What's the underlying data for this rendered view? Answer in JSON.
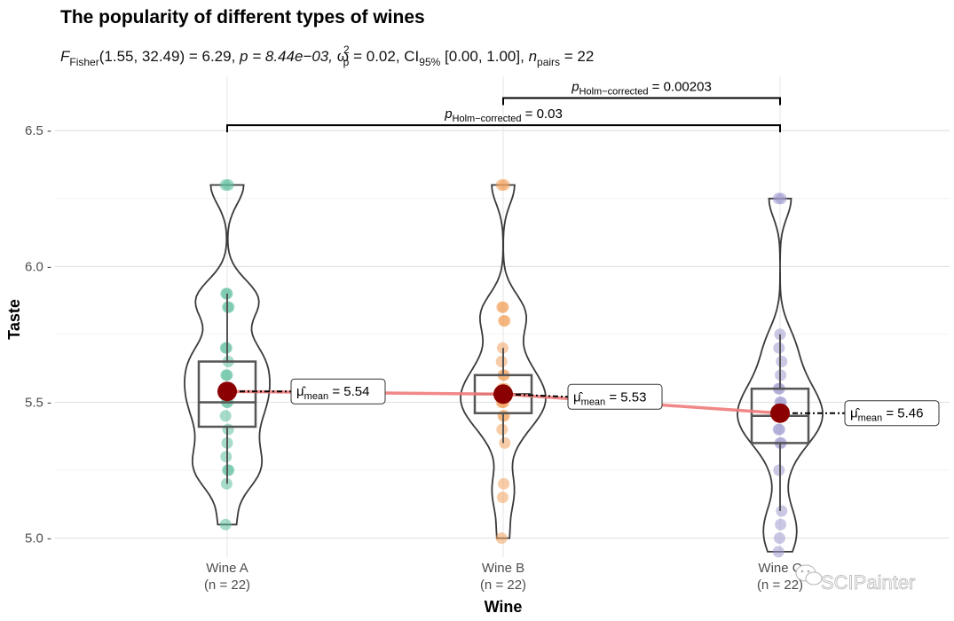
{
  "chart_data": {
    "type": "violin-box",
    "title": "The popularity of different types of wines",
    "subtitle": {
      "stat_prefix": "F",
      "stat_sub": "Fisher",
      "stat_args": "(1.55, 32.49) = 6.29, ",
      "p_text": "p = 8.44e−03, ",
      "omega_symbol": "ω",
      "omega_sub": "p",
      "omega_sup": "2",
      "omega_value": " = 0.02, CI",
      "ci_sub": "95%",
      "ci_text": " [0.00, 1.00], ",
      "n_prefix": "n",
      "n_sub": "pairs",
      "n_value": " = 22"
    },
    "xlabel": "Wine",
    "ylabel": "Taste",
    "ylim": [
      4.93,
      6.7
    ],
    "yticks": [
      5.0,
      5.5,
      6.0,
      6.5
    ],
    "ytick_labels": [
      "5.0 -",
      "5.5 -",
      "6.0 -",
      "6.5 -"
    ],
    "grid": true,
    "categories": [
      "Wine A",
      "Wine B",
      "Wine C"
    ],
    "n_labels": [
      "(n = 22)",
      "(n = 22)",
      "(n = 22)"
    ],
    "colors": {
      "Wine A": "#5fbf9e",
      "Wine B": "#f3a35e",
      "Wine C": "#9e9ad0",
      "mean_point": "#8b0000",
      "mean_line": "#ef7b7b"
    },
    "groups": [
      {
        "name": "Wine A",
        "points": [
          5.05,
          5.2,
          5.25,
          5.25,
          5.3,
          5.35,
          5.4,
          5.45,
          5.5,
          5.5,
          5.55,
          5.6,
          5.6,
          5.65,
          5.7,
          5.7,
          5.85,
          5.85,
          5.9,
          5.9,
          6.3,
          6.3
        ],
        "box": {
          "q1": 5.41,
          "median": 5.5,
          "q3": 5.65,
          "whisker_low": 5.2,
          "whisker_high": 5.9
        },
        "mean": 5.54,
        "mean_label_prefix": "μ̂",
        "mean_label_sub": "mean",
        "mean_label_value": " = 5.54"
      },
      {
        "name": "Wine B",
        "points": [
          5.0,
          5.15,
          5.2,
          5.35,
          5.4,
          5.45,
          5.45,
          5.5,
          5.5,
          5.5,
          5.55,
          5.55,
          5.6,
          5.6,
          5.65,
          5.7,
          5.8,
          5.8,
          5.85,
          5.85,
          6.3,
          6.3
        ],
        "box": {
          "q1": 5.46,
          "median": 5.53,
          "q3": 5.6,
          "whisker_low": 5.35,
          "whisker_high": 5.7
        },
        "mean": 5.53,
        "mean_label_prefix": "μ̂",
        "mean_label_sub": "mean",
        "mean_label_value": " = 5.53"
      },
      {
        "name": "Wine C",
        "points": [
          4.95,
          5.0,
          5.05,
          5.1,
          5.25,
          5.35,
          5.35,
          5.4,
          5.4,
          5.45,
          5.45,
          5.45,
          5.5,
          5.5,
          5.55,
          5.55,
          5.6,
          5.65,
          5.7,
          5.75,
          6.25,
          6.25
        ],
        "box": {
          "q1": 5.35,
          "median": 5.45,
          "q3": 5.55,
          "whisker_low": 5.1,
          "whisker_high": 5.75
        },
        "mean": 5.46,
        "mean_label_prefix": "μ̂",
        "mean_label_sub": "mean",
        "mean_label_value": " = 5.46"
      }
    ],
    "comparisons": [
      {
        "from": "Wine B",
        "to": "Wine C",
        "y": 6.62,
        "label_prefix": "p",
        "label_sub": "Holm−corrected",
        "label_value": " = 0.00203"
      },
      {
        "from": "Wine A",
        "to": "Wine C",
        "y": 6.52,
        "label_prefix": "p",
        "label_sub": "Holm−corrected",
        "label_value": " = 0.03"
      }
    ]
  },
  "watermark": "SCIPainter"
}
